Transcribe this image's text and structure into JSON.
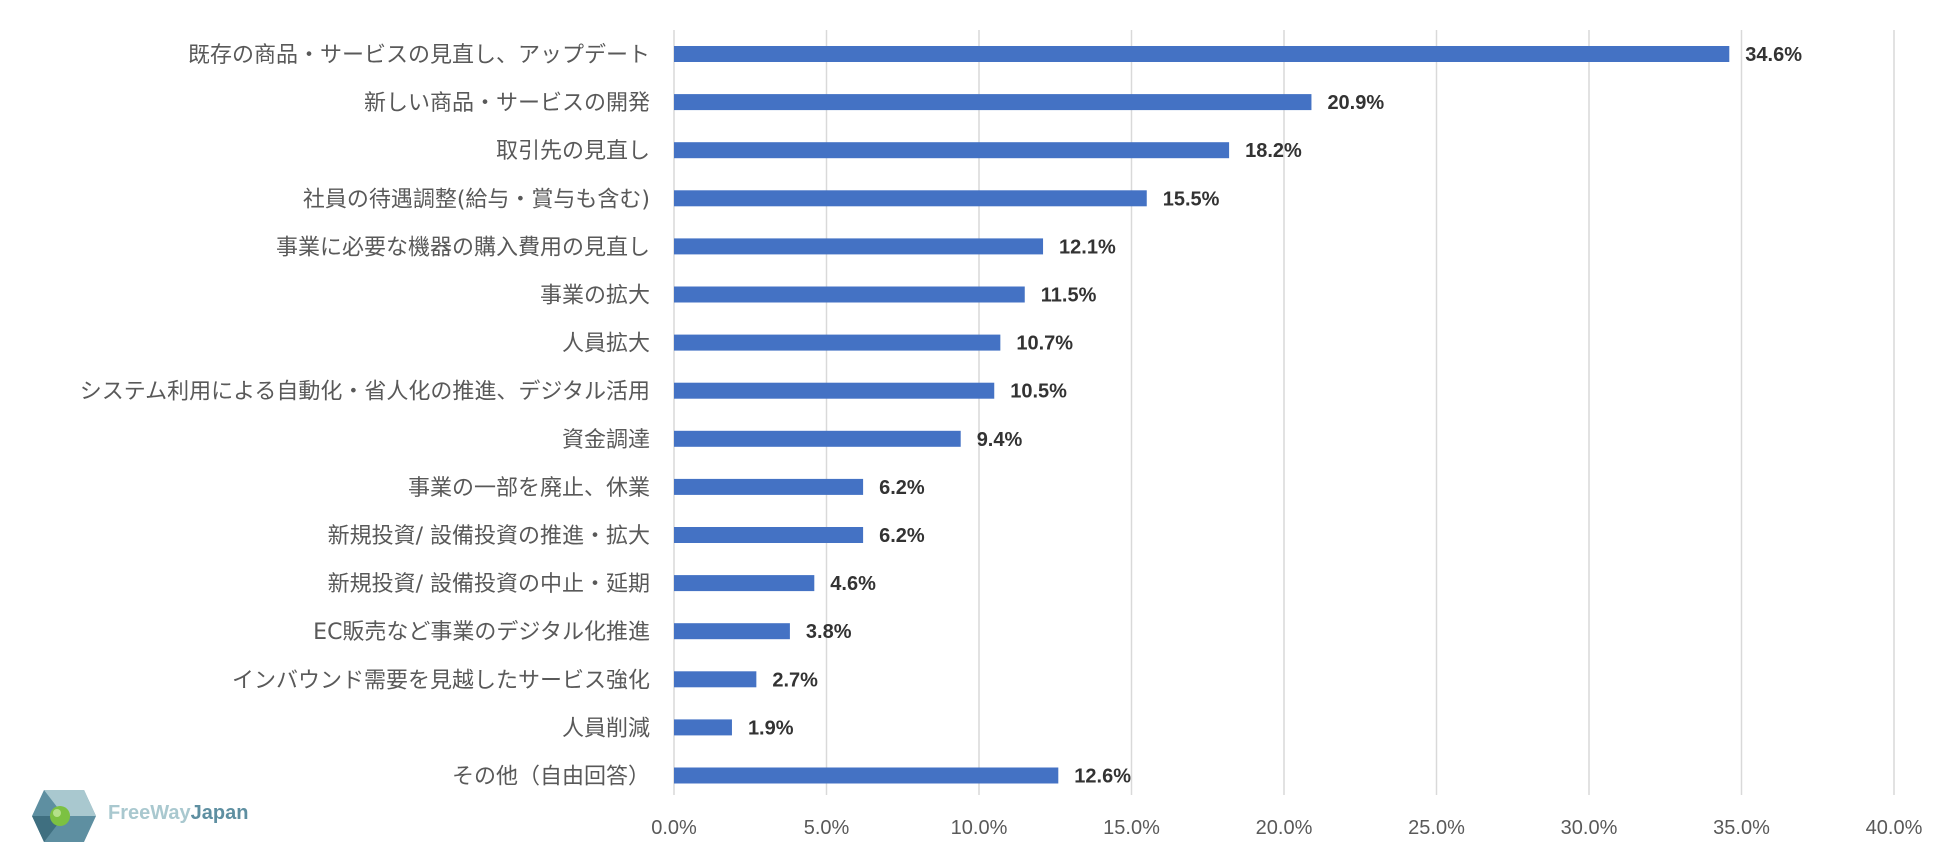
{
  "chart_data": {
    "type": "bar",
    "orientation": "horizontal",
    "categories": [
      "既存の商品・サービスの見直し、アップデート",
      "新しい商品・サービスの開発",
      "取引先の見直し",
      "社員の待遇調整(給与・賞与も含む)",
      "事業に必要な機器の購入費用の見直し",
      "事業の拡大",
      "人員拡大",
      "システム利用による自動化・省人化の推進、デジタル活用",
      "資金調達",
      "事業の一部を廃止、休業",
      "新規投資/ 設備投資の推進・拡大",
      "新規投資/ 設備投資の中止・延期",
      "EC販売など事業のデジタル化推進",
      "インバウンド需要を見越したサービス強化",
      "人員削減",
      "その他（自由回答）"
    ],
    "values": [
      34.6,
      20.9,
      18.2,
      15.5,
      12.1,
      11.5,
      10.7,
      10.5,
      9.4,
      6.2,
      6.2,
      4.6,
      3.8,
      2.7,
      1.9,
      12.6
    ],
    "value_labels": [
      "34.6%",
      "20.9%",
      "18.2%",
      "15.5%",
      "12.1%",
      "11.5%",
      "10.7%",
      "10.5%",
      "9.4%",
      "6.2%",
      "6.2%",
      "4.6%",
      "3.8%",
      "2.7%",
      "1.9%",
      "12.6%"
    ],
    "xlim": [
      0,
      40
    ],
    "xticks": [
      0,
      5,
      10,
      15,
      20,
      25,
      30,
      35,
      40
    ],
    "xtick_labels": [
      "0.0%",
      "5.0%",
      "10.0%",
      "15.0%",
      "20.0%",
      "25.0%",
      "30.0%",
      "35.0%",
      "40.0%"
    ],
    "bar_color": "#4472c4",
    "grid": "vertical",
    "legend": "none"
  },
  "logo": {
    "text_part1": "FreeWay",
    "text_part2": "Japan",
    "colors": [
      "#a9c8cf",
      "#5e8fa1",
      "#7cc142"
    ]
  }
}
